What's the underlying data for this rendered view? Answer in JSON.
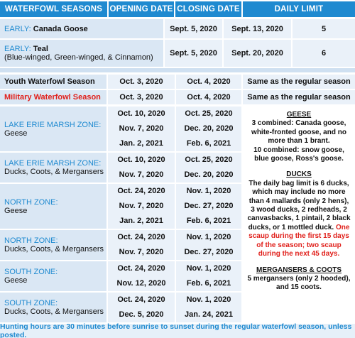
{
  "header": [
    "WATERFOWL SEASONS",
    "OPENING DATE",
    "CLOSING DATE",
    "DAILY LIMIT"
  ],
  "early": [
    {
      "prefix": "EARLY:",
      "name": "Canada Goose",
      "opening": "Sept. 5, 2020",
      "closing": "Sept. 13, 2020",
      "limit": 5
    },
    {
      "prefix": "EARLY:",
      "name": "Teal",
      "note": "(Blue-winged, Green-winged, & Cinnamon)",
      "opening": "Sept. 5, 2020",
      "closing": "Sept. 20, 2020",
      "limit": 6
    }
  ],
  "special": [
    {
      "name": "Youth Waterfowl Season",
      "opening": "Oct. 3, 2020",
      "closing": "Oct. 4, 2020",
      "limit": "Same as the regular season"
    },
    {
      "name": "Military Waterfowl Season",
      "opening": "Oct. 3, 2020",
      "closing": "Oct. 4, 2020",
      "limit": "Same as the regular season"
    }
  ],
  "zones": [
    {
      "zone": "LAKE ERIE MARSH ZONE:",
      "species": "Geese",
      "periods": [
        [
          "Oct. 10, 2020",
          "Oct. 25, 2020"
        ],
        [
          "Nov. 7, 2020",
          "Dec. 20, 2020"
        ],
        [
          "Jan. 2, 2021",
          "Feb. 6, 2021"
        ]
      ]
    },
    {
      "zone": "LAKE ERIE MARSH ZONE:",
      "species": "Ducks, Coots, & Mergansers",
      "periods": [
        [
          "Oct. 10, 2020",
          "Oct. 25, 2020"
        ],
        [
          "Nov. 7, 2020",
          "Dec. 20, 2020"
        ]
      ]
    },
    {
      "zone": "NORTH ZONE:",
      "species": "Geese",
      "periods": [
        [
          "Oct. 24, 2020",
          "Nov. 1, 2020"
        ],
        [
          "Nov. 7, 2020",
          "Dec. 27, 2020"
        ],
        [
          "Jan. 2, 2021",
          "Feb. 6, 2021"
        ]
      ]
    },
    {
      "zone": "NORTH ZONE:",
      "species": "Ducks, Coots, & Mergansers",
      "periods": [
        [
          "Oct. 24, 2020",
          "Nov. 1, 2020"
        ],
        [
          "Nov. 7, 2020",
          "Dec. 27, 2020"
        ]
      ]
    },
    {
      "zone": "SOUTH ZONE:",
      "species": "Geese",
      "periods": [
        [
          "Oct. 24, 2020",
          "Nov. 1, 2020"
        ],
        [
          "Nov. 12, 2020",
          "Feb. 6, 2021"
        ]
      ]
    },
    {
      "zone": "SOUTH ZONE:",
      "species": "Ducks, Coots, & Mergansers",
      "periods": [
        [
          "Oct. 24, 2020",
          "Nov. 1, 2020"
        ],
        [
          "Dec. 5, 2020",
          "Jan. 24, 2021"
        ]
      ]
    }
  ],
  "limits": {
    "geese": {
      "heading": "GEESE",
      "lines": [
        "3 combined: Canada goose, white-fronted goose, and no more than 1 brant.",
        "10 combined: snow goose, blue goose, Ross's goose."
      ]
    },
    "ducks": {
      "heading": "DUCKS",
      "text": "The daily bag limit is 6 ducks, which may include no more than 4 mallards (only 2 hens), 3 wood ducks, 2 redheads, 2 canvasbacks, 1 pintail, 2 black ducks, or 1 mottled duck.",
      "alert": "One scaup during the first 15 days of the season; two scaup during the next 45 days."
    },
    "mergansers": {
      "heading": "MERGANSERS & COOTS",
      "text": "5 mergansers (only 2 hooded), and 15 coots."
    }
  },
  "footer": "Hunting hours are 30 minutes before sunrise to sunset during the regular waterfowl season, unless posted."
}
